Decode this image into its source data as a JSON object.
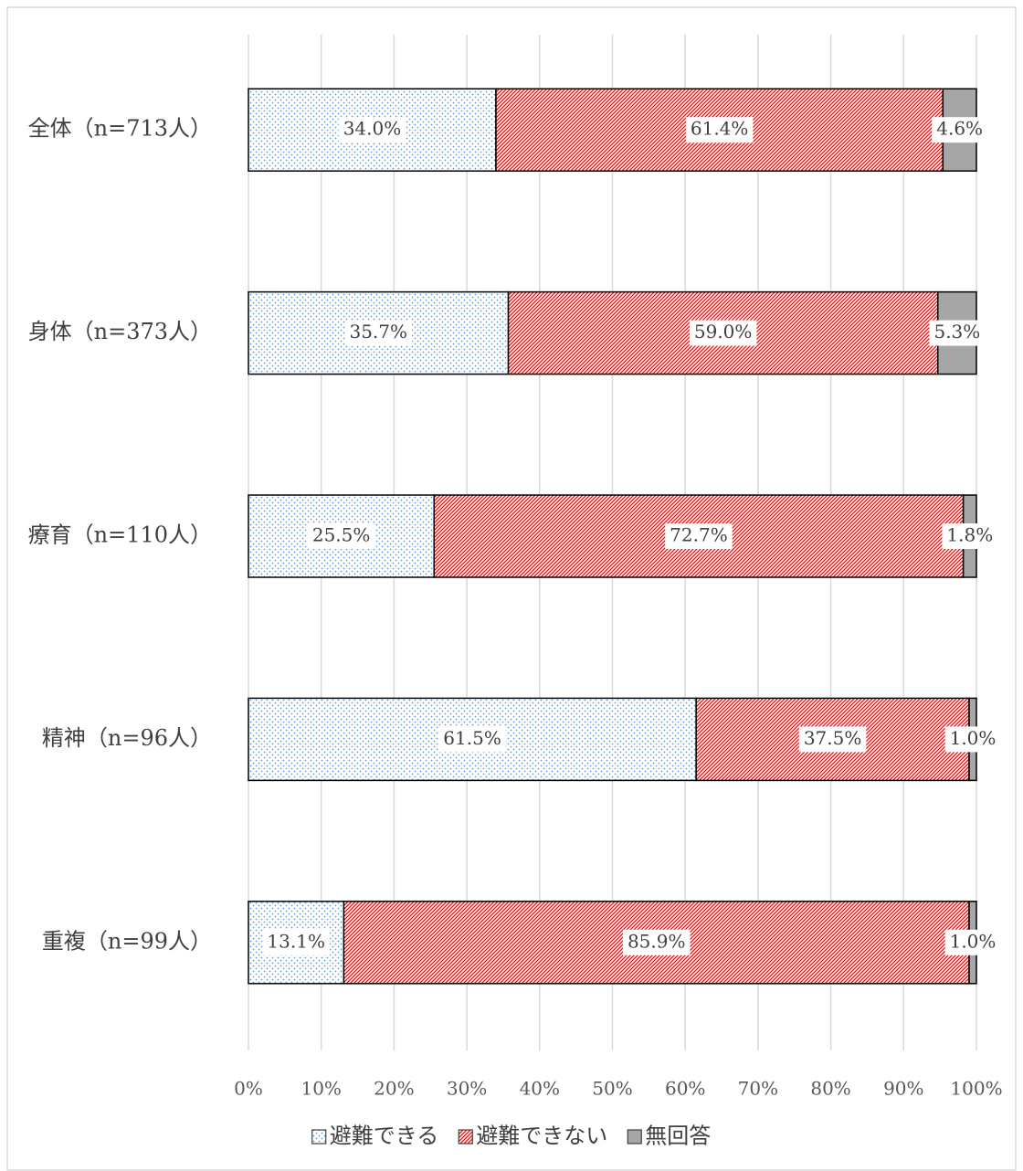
{
  "chart_data": {
    "type": "stacked-bar-horizontal",
    "categories": [
      "全体（n=713人）",
      "身体（n=373人）",
      "療育（n=110人）",
      "精神（n=96人）",
      "重複（n=99人）"
    ],
    "series": [
      {
        "name": "避難できる",
        "color": "#5b9bd5",
        "pattern": "dots",
        "values": [
          34.0,
          35.7,
          25.5,
          61.5,
          13.1
        ],
        "value_labels": [
          "34.0%",
          "35.7%",
          "25.5%",
          "61.5%",
          "13.1%"
        ]
      },
      {
        "name": "避難できない",
        "color": "#ff0000",
        "pattern": "hatch",
        "values": [
          61.4,
          59.0,
          72.7,
          37.5,
          85.9
        ],
        "value_labels": [
          "61.4%",
          "59.0%",
          "72.7%",
          "37.5%",
          "85.9%"
        ]
      },
      {
        "name": "無回答",
        "color": "#a6a6a6",
        "pattern": "solid",
        "values": [
          4.6,
          5.3,
          1.8,
          1.0,
          1.0
        ],
        "value_labels": [
          "4.6%",
          "5.3%",
          "1.8%",
          "1.0%",
          "1.0%"
        ]
      }
    ],
    "xlim": [
      0,
      100
    ],
    "xticks": [
      {
        "value": 0,
        "label": "0%"
      },
      {
        "value": 10,
        "label": "10%"
      },
      {
        "value": 20,
        "label": "20%"
      },
      {
        "value": 30,
        "label": "30%"
      },
      {
        "value": 40,
        "label": "40%"
      },
      {
        "value": 50,
        "label": "50%"
      },
      {
        "value": 60,
        "label": "60%"
      },
      {
        "value": 70,
        "label": "70%"
      },
      {
        "value": 80,
        "label": "80%"
      },
      {
        "value": 90,
        "label": "90%"
      },
      {
        "value": 100,
        "label": "100%"
      }
    ],
    "grid": true,
    "legend": "bottom"
  }
}
